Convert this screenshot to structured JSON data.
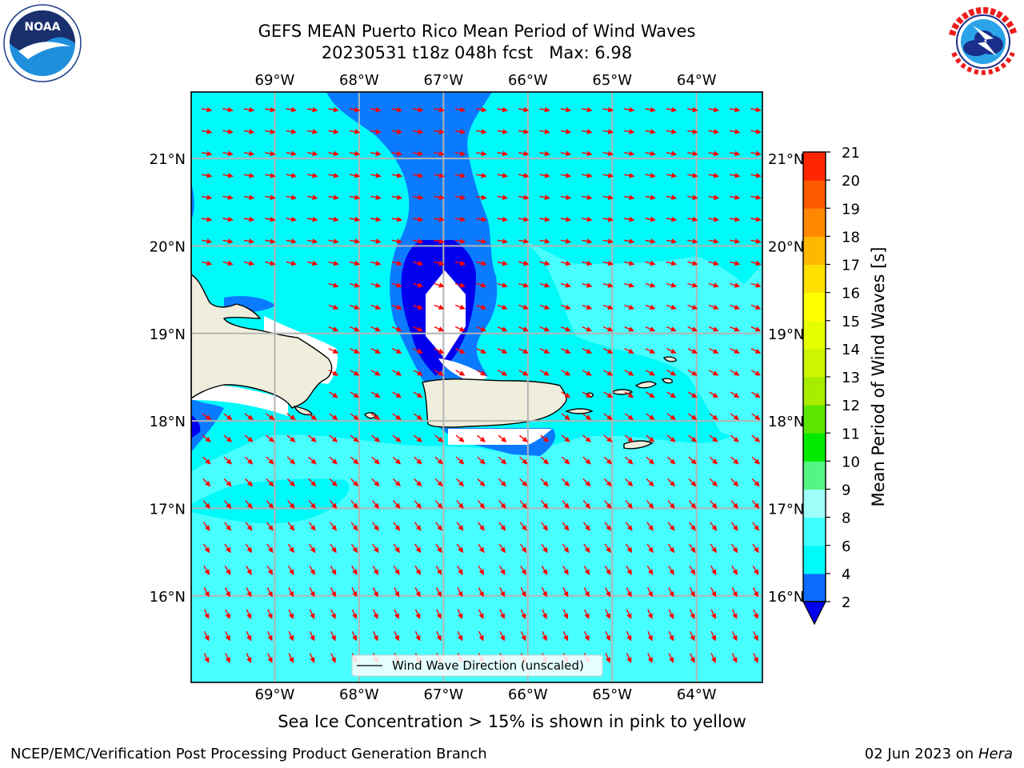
{
  "title": {
    "line1": "GEFS MEAN Puerto Rico Mean Period of Wind Waves",
    "line2": "20230531 t18z 048h fcst   Max: 6.98"
  },
  "logos": {
    "left": "noaa-logo",
    "right": "nws-logo"
  },
  "chart_data": {
    "type": "contour-map",
    "region": "Puerto Rico",
    "lon_ticks": [
      "69°W",
      "68°W",
      "67°W",
      "66°W",
      "65°W",
      "64°W"
    ],
    "lat_ticks": [
      "21°N",
      "20°N",
      "19°N",
      "18°N",
      "17°N",
      "16°N"
    ],
    "lon_values": [
      -69,
      -68,
      -67,
      -66,
      -65,
      -64
    ],
    "lat_values": [
      21,
      20,
      19,
      18,
      17,
      16
    ],
    "extent": {
      "lon": [
        -69.99,
        -63.22
      ],
      "lat": [
        15.01,
        21.76
      ]
    },
    "grid": true,
    "legend": {
      "label": "Wind Wave Direction (unscaled)",
      "location": "bottom-center"
    },
    "colorbar": {
      "label": "Mean Period of Wind Waves [s]",
      "ticks": [
        2,
        4,
        6,
        8,
        9,
        10,
        11,
        12,
        13,
        14,
        15,
        16,
        17,
        18,
        19,
        20,
        21
      ],
      "colors": [
        "#0a6cff",
        "#00fafa",
        "#40ffff",
        "#9ffffb",
        "#55f583",
        "#00ea00",
        "#5ce500",
        "#a8ec00",
        "#ccf500",
        "#e6ff00",
        "#ffff00",
        "#ffe000",
        "#ffb800",
        "#ff8800",
        "#ff5a00",
        "#ff2600",
        "#ff0000"
      ],
      "under_color": "#0000ee",
      "extend": "min"
    },
    "field_colors": {
      "lt2": "#0000ee",
      "c2_4": "#0a7bff",
      "c4_6": "#00fafa",
      "c6_8": "#48ffff"
    },
    "max_value": 6.98,
    "arrow_color": "#ff0000",
    "land_color": "#efeedd",
    "arrow_direction_deg": {
      "north": 100,
      "south": 155
    }
  },
  "footer": {
    "note": "Sea Ice Concentration > 15% is shown in pink to yellow",
    "org": "NCEP/EMC/Verification Post Processing Product Generation Branch",
    "date": "02 Jun 2023 on",
    "host": "Hera"
  }
}
